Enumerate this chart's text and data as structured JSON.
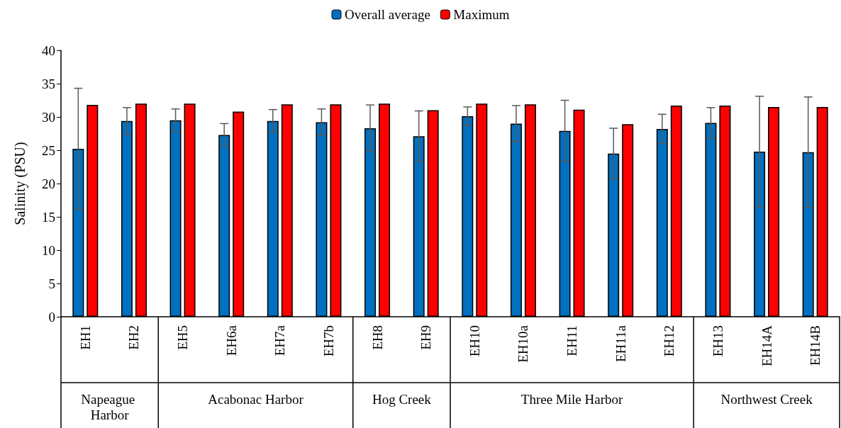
{
  "chart_data": {
    "type": "bar",
    "ylabel": "Salinity (PSU)",
    "categories": [
      "EH1",
      "EH2",
      "EH5",
      "EH6a",
      "EH7a",
      "EH7b",
      "EH8",
      "EH9",
      "EH10",
      "EH10a",
      "EH11",
      "EH11a",
      "EH12",
      "EH13",
      "EH14A",
      "EH14B"
    ],
    "series": [
      {
        "name": "Overall average",
        "color": "#0070c0",
        "values": [
          25.2,
          29.4,
          29.5,
          27.3,
          29.4,
          29.2,
          28.3,
          27.1,
          30.1,
          29.0,
          27.9,
          24.5,
          28.2,
          29.1,
          24.8,
          24.7
        ],
        "errors": [
          9.1,
          2.0,
          1.7,
          1.7,
          1.7,
          2.0,
          3.5,
          3.8,
          1.4,
          2.7,
          4.6,
          3.8,
          2.2,
          2.3,
          8.3,
          8.3
        ]
      },
      {
        "name": "Maximum",
        "color": "#ff0000",
        "values": [
          31.8,
          32.0,
          32.0,
          30.8,
          31.9,
          31.9,
          32.0,
          31.0,
          32.0,
          31.9,
          31.1,
          28.9,
          31.7,
          31.7,
          31.5,
          31.5
        ]
      }
    ],
    "annotations": [
      "Napeague Harbor",
      "Acabonac Harbor",
      "Hog Creek",
      "Three Mile Harbor",
      "Northwest Creek"
    ],
    "ylim": [
      0,
      40
    ],
    "yticks": [
      0,
      5,
      10,
      15,
      20,
      25,
      30,
      35,
      40
    ],
    "grid": false,
    "legend": "top"
  }
}
